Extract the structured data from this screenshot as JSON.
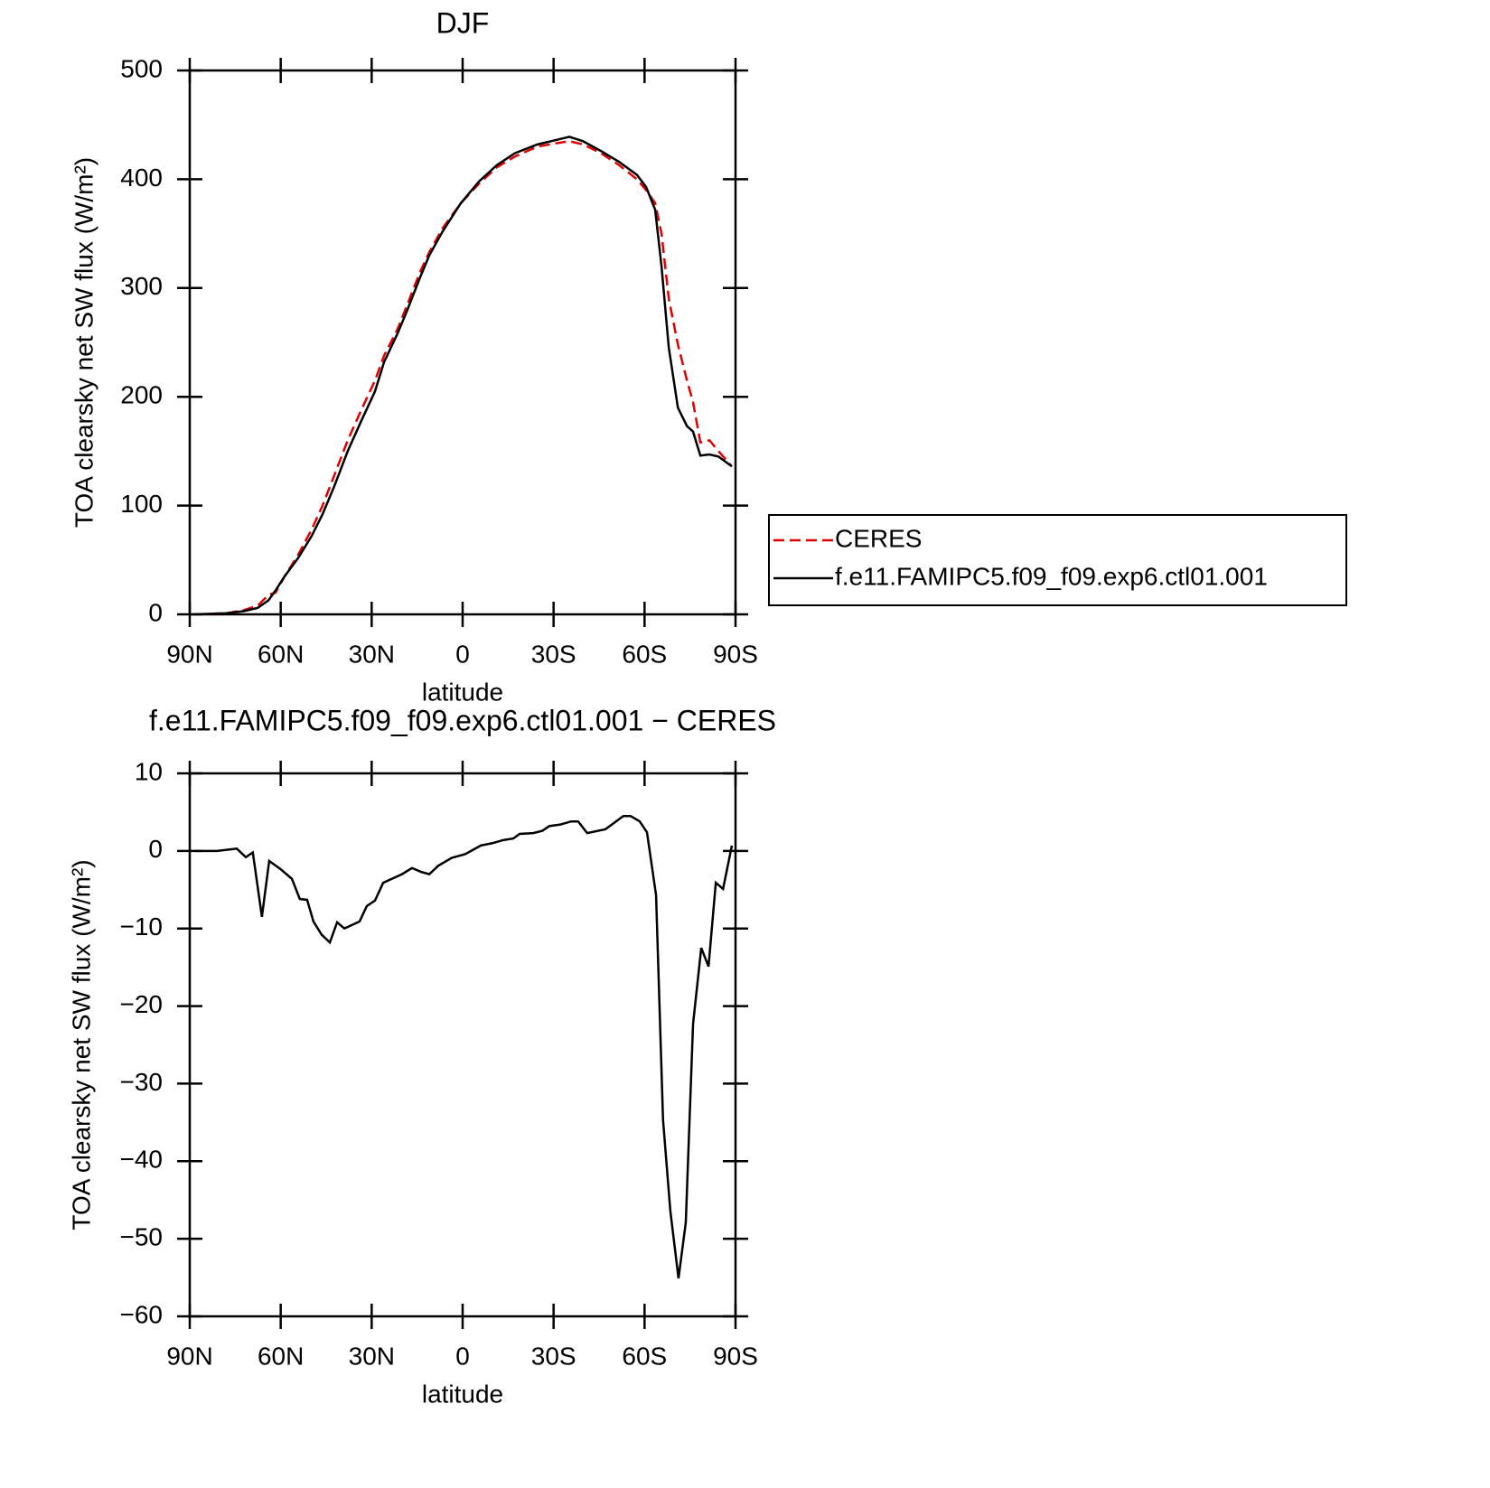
{
  "chart_data": [
    {
      "type": "line",
      "title": "DJF",
      "x_label": "latitude",
      "y_label": "TOA clearsky net SW flux (W/m²)",
      "xlim": [
        90,
        -90
      ],
      "xticks": [
        {
          "value": 90,
          "label": "90N"
        },
        {
          "value": 60,
          "label": "60N"
        },
        {
          "value": 30,
          "label": "30N"
        },
        0,
        {
          "value": -30,
          "label": "30S"
        },
        {
          "value": -60,
          "label": "60S"
        },
        {
          "value": -90,
          "label": "90S"
        }
      ],
      "ylim": [
        0,
        500
      ],
      "yticks": [
        0,
        100,
        200,
        300,
        400,
        500
      ],
      "legend": "outside right",
      "x": [
        88.5,
        78,
        72,
        67.6,
        64,
        61.7,
        58.7,
        54.2,
        49.8,
        46.2,
        42.3,
        37.9,
        33.4,
        28.9,
        25.9,
        21.5,
        18.5,
        14,
        11,
        6.6,
        0.6,
        -5.4,
        -11.3,
        -17.3,
        -24.7,
        -30.7,
        -35.2,
        -39.7,
        -45.6,
        -51.6,
        -57.5,
        -60.5,
        -63.5,
        -65.6,
        -68,
        -71,
        -74,
        -76,
        -78.4,
        -81.4,
        -84.4,
        -88.8
      ],
      "series": [
        {
          "name": "CERES",
          "color": "#e00000",
          "style": "dashed",
          "values": [
            0,
            1,
            4,
            8,
            18,
            20,
            35,
            55,
            78,
            100,
            128,
            160,
            188,
            215,
            238,
            262,
            283,
            315,
            333,
            355,
            378,
            396,
            411,
            421,
            430,
            433,
            435,
            432,
            424,
            413,
            400,
            390,
            378,
            350,
            290,
            248,
            215,
            195,
            158,
            160,
            150,
            136
          ]
        },
        {
          "name": "f.e11.FAMIPC5.f09_f09.exp6.ctl01.001",
          "color": "#000000",
          "style": "solid",
          "values": [
            0,
            1,
            3,
            6,
            13,
            22,
            35,
            52,
            72,
            92,
            118,
            150,
            178,
            205,
            232,
            258,
            278,
            310,
            330,
            352,
            378,
            398,
            413,
            424,
            432,
            436,
            439,
            435,
            426,
            416,
            404,
            393,
            372,
            320,
            245,
            190,
            173,
            168,
            146,
            147,
            145,
            136
          ]
        }
      ]
    },
    {
      "type": "line",
      "title": "f.e11.FAMIPC5.f09_f09.exp6.ctl01.001 − CERES",
      "x_label": "latitude",
      "y_label": "TOA clearsky net SW flux (W/m²)",
      "xlim": [
        90,
        -90
      ],
      "xticks": [
        {
          "value": 90,
          "label": "90N"
        },
        {
          "value": 60,
          "label": "60N"
        },
        {
          "value": 30,
          "label": "30N"
        },
        0,
        {
          "value": -30,
          "label": "30S"
        },
        {
          "value": -60,
          "label": "60S"
        },
        {
          "value": -90,
          "label": "90S"
        }
      ],
      "ylim": [
        -60,
        10
      ],
      "yticks": [
        {
          "value": -60,
          "label": "−60"
        },
        {
          "value": -50,
          "label": "−50"
        },
        {
          "value": -40,
          "label": "−40"
        },
        {
          "value": -30,
          "label": "−30"
        },
        {
          "value": -20,
          "label": "−20"
        },
        {
          "value": -10,
          "label": "−10"
        },
        0,
        10
      ],
      "x": [
        88.2,
        81,
        74.5,
        71.5,
        69.2,
        66.2,
        63.8,
        60.2,
        56.3,
        53.7,
        51.3,
        49.2,
        46.5,
        43.8,
        41.4,
        39,
        34,
        31.6,
        28.9,
        26.2,
        20,
        16.7,
        13.7,
        11,
        8,
        3.6,
        -0.9,
        -6,
        -9.8,
        -13.4,
        -16.7,
        -18.8,
        -23.3,
        -26.3,
        -28.6,
        -32.2,
        -35.8,
        -38.1,
        -41.1,
        -47.1,
        -53,
        -55.4,
        -58.4,
        -60.8,
        -63.8,
        -66.1,
        -68.5,
        -71.2,
        -73.6,
        -76,
        -78.7,
        -81.1,
        -83.5,
        -85.9,
        -88.8
      ],
      "series": [
        {
          "color": "#000000",
          "style": "solid",
          "values": [
            0,
            0,
            0.3,
            -0.8,
            -0.2,
            -8.5,
            -1.3,
            -2.3,
            -3.6,
            -6.2,
            -6.3,
            -9.1,
            -10.8,
            -11.8,
            -9.2,
            -10,
            -9.1,
            -7.1,
            -6.4,
            -4.1,
            -3,
            -2.2,
            -2.7,
            -3,
            -1.9,
            -0.9,
            -0.4,
            0.7,
            1,
            1.4,
            1.6,
            2.2,
            2.3,
            2.6,
            3.2,
            3.4,
            3.8,
            3.8,
            2.3,
            2.8,
            4.5,
            4.5,
            3.8,
            2.4,
            -5.7,
            -34.7,
            -46.4,
            -55.1,
            -47.9,
            -22.3,
            -12.5,
            -14.9,
            -4.1,
            -4.9,
            0.7
          ]
        }
      ]
    }
  ]
}
